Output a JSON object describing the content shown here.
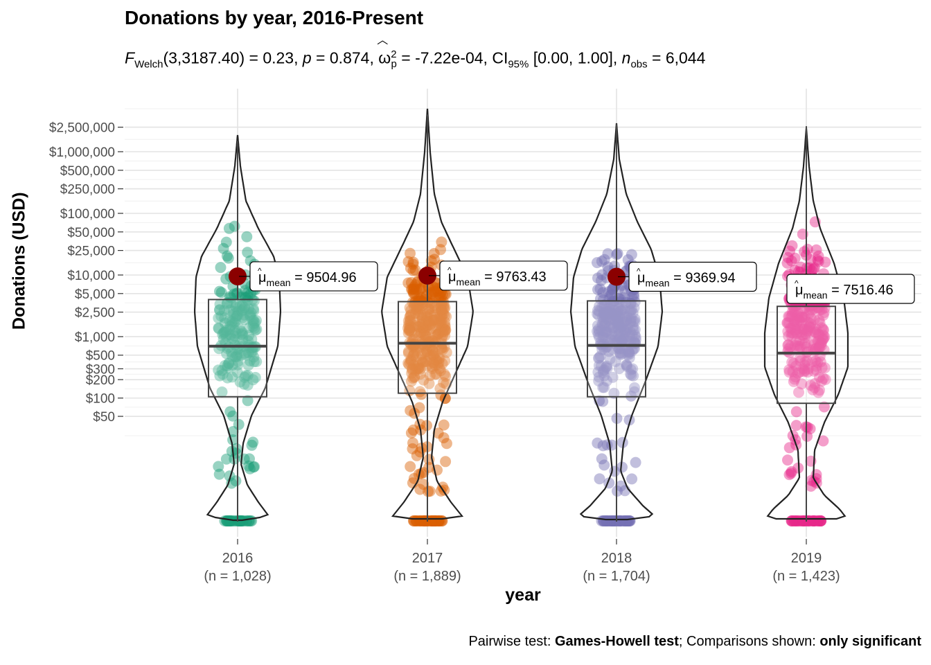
{
  "title": "Donations by year, 2016-Present",
  "subtitle": {
    "stat_prefix": "F",
    "stat_sub": "Welch",
    "stat_args": "(3,3187.40) = 0.23, ",
    "p_label": "p",
    "p_value": " = 0.874, ",
    "effect_symbol": "ω",
    "effect_sup": "2",
    "effect_sub": "p",
    "effect_value": " = -7.22e-04, CI",
    "ci_sub": "95%",
    "ci_value": " [0.00, 1.00], ",
    "n_label": "n",
    "n_sub": "obs",
    "n_value": " = 6,044"
  },
  "caption": {
    "prefix": "Pairwise test: ",
    "test": "Games-Howell test",
    "middle": "; Comparisons shown: ",
    "shown": "only significant"
  },
  "chart_data": {
    "type": "violin",
    "xlabel": "year",
    "ylabel": "Donations (USD)",
    "y_scale": "log",
    "categories": [
      "2016",
      "2017",
      "2018",
      "2019"
    ],
    "category_counts": [
      "(n = 1,028)",
      "(n = 1,889)",
      "(n = 1,704)",
      "(n = 1,423)"
    ],
    "colors": [
      "#1b9e77",
      "#d95f02",
      "#7570b3",
      "#e7298a"
    ],
    "y_ticks": [
      {
        "label": "$2,500,000",
        "value": 2500000
      },
      {
        "label": "$1,000,000",
        "value": 1000000
      },
      {
        "label": "$500,000",
        "value": 500000
      },
      {
        "label": "$250,000",
        "value": 250000
      },
      {
        "label": "$100,000",
        "value": 100000
      },
      {
        "label": "$50,000",
        "value": 50000
      },
      {
        "label": "$25,000",
        "value": 25000
      },
      {
        "label": "$10,000",
        "value": 10000
      },
      {
        "label": "$5,000",
        "value": 5000
      },
      {
        "label": "$2,500",
        "value": 2500
      },
      {
        "label": "$1,000",
        "value": 1000
      },
      {
        "label": "$500",
        "value": 500
      },
      {
        "label": "$300",
        "value": 300
      },
      {
        "label": "$200",
        "value": 200
      },
      {
        "label": "$100",
        "value": 100
      },
      {
        "label": "$50",
        "value": 50
      }
    ],
    "means": [
      9504.96,
      9763.43,
      9369.94,
      7516.46
    ],
    "mean_labels": [
      "9504.96",
      "9763.43",
      "9369.94",
      "7516.46"
    ],
    "mean_label_prefix": "μ",
    "mean_label_sub": "mean",
    "boxes": [
      {
        "q1": 105,
        "median": 700,
        "q3": 4000,
        "whisker_low": 0,
        "whisker_high": 1500000
      },
      {
        "q1": 120,
        "median": 780,
        "q3": 3700,
        "whisker_low": 0,
        "whisker_high": 4000000
      },
      {
        "q1": 105,
        "median": 720,
        "q3": 3800,
        "whisker_low": 0,
        "whisker_high": 2800000
      },
      {
        "q1": 82,
        "median": 540,
        "q3": 3100,
        "whisker_low": 0,
        "whisker_high": 2600000
      }
    ],
    "grid": true,
    "legend": "none"
  }
}
